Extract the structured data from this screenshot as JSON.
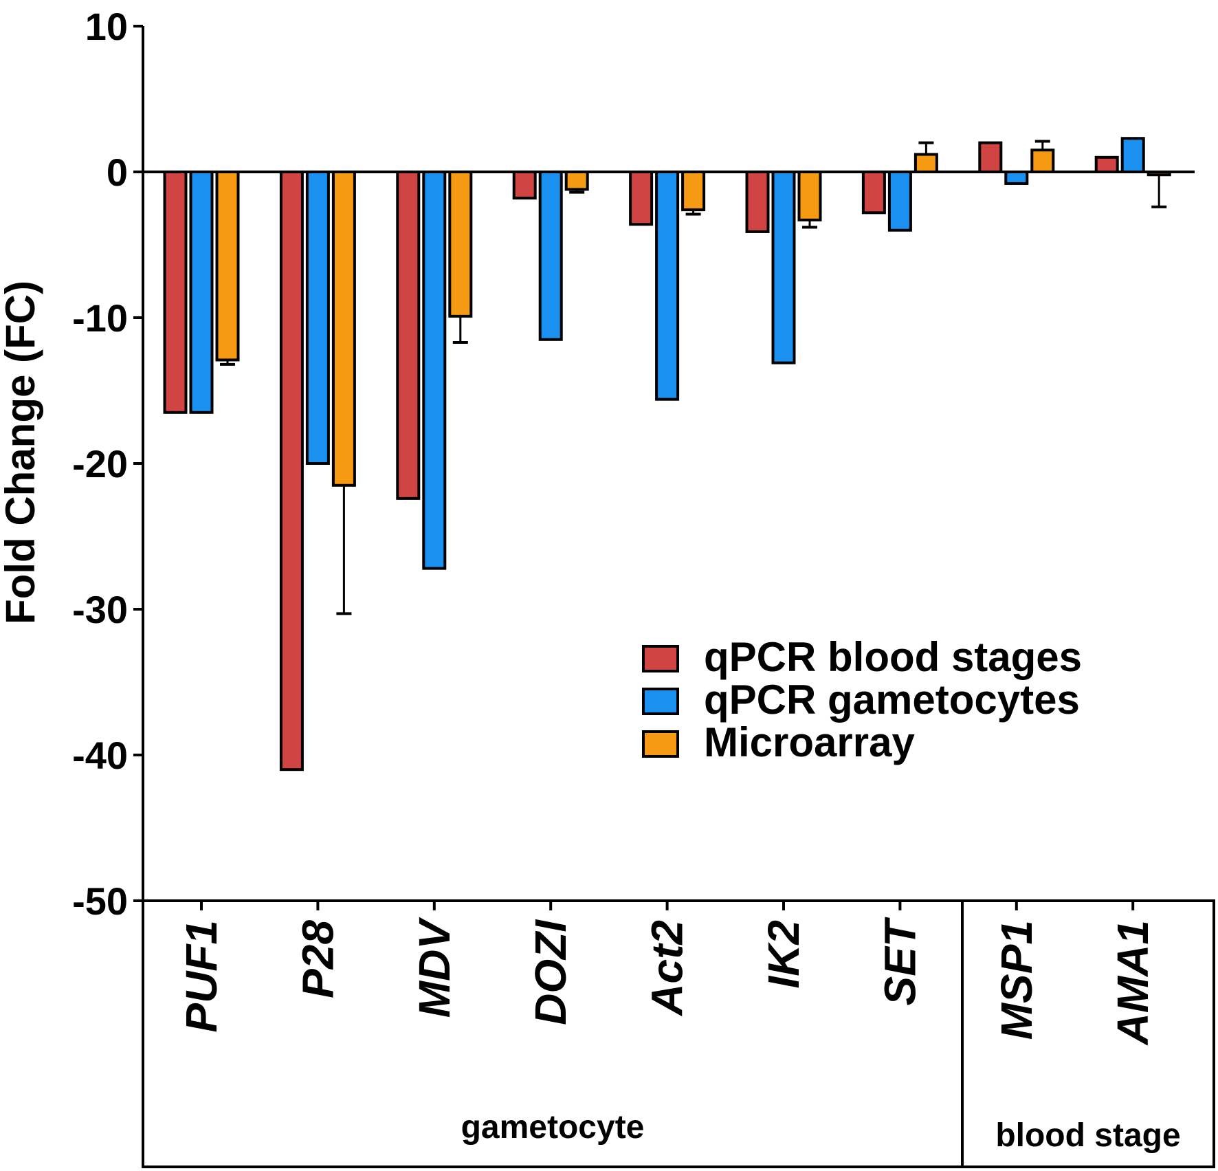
{
  "chart_data": {
    "type": "bar",
    "title": "",
    "xlabel": "",
    "ylabel": "Fold Change (FC)",
    "ylim": [
      -50,
      10
    ],
    "yticks": [
      10,
      0,
      -10,
      -20,
      -30,
      -40,
      -50
    ],
    "ytick_labels": [
      "10",
      "0",
      "-10",
      "-20",
      "-30",
      "-40",
      "-50"
    ],
    "categories": [
      "PUF1",
      "P28",
      "MDV",
      "DOZI",
      "Act2",
      "IK2",
      "SET",
      "MSP1",
      "AMA1"
    ],
    "series": [
      {
        "name": "qPCR blood stages",
        "color": "#d04444",
        "values": [
          -16.5,
          -41,
          -22.4,
          -1.8,
          -3.6,
          -4.1,
          -2.8,
          2.0,
          1.0
        ]
      },
      {
        "name": "qPCR gametocytes",
        "color": "#1a90f0",
        "values": [
          -16.5,
          -20.0,
          -27.2,
          -11.5,
          -15.6,
          -13.1,
          -4.0,
          -0.8,
          2.3
        ]
      },
      {
        "name": "Microarray",
        "color": "#f59a12",
        "values": [
          -12.9,
          -21.5,
          -9.9,
          -1.2,
          -2.6,
          -3.3,
          1.2,
          1.5,
          -0.2
        ]
      }
    ],
    "error_bars": {
      "Microarray": [
        0.3,
        8.8,
        1.8,
        0.2,
        0.3,
        0.5,
        0.8,
        0.6,
        2.2
      ]
    },
    "groups": [
      {
        "label": "gametocyte",
        "categories": [
          "PUF1",
          "P28",
          "MDV",
          "DOZI",
          "Act2",
          "IK2",
          "SET"
        ]
      },
      {
        "label": "blood stage",
        "categories": [
          "MSP1",
          "AMA1"
        ]
      }
    ],
    "legend": {
      "position": "center-right",
      "entries": [
        "qPCR blood stages",
        "qPCR gametocytes",
        "Microarray"
      ]
    },
    "grid": false
  }
}
